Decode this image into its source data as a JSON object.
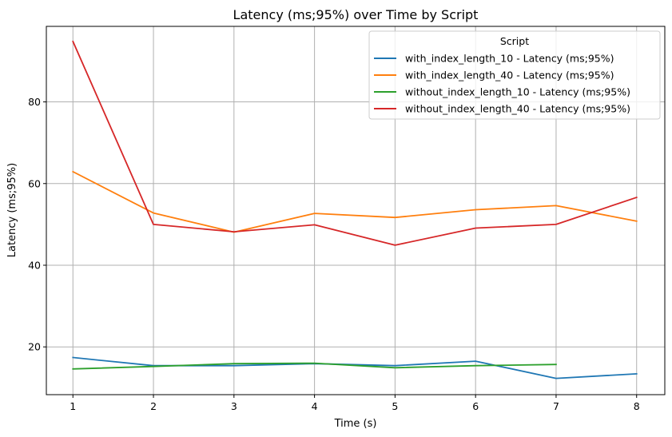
{
  "chart_data": {
    "type": "line",
    "title": "Latency (ms;95%) over Time by Script",
    "xlabel": "Time (s)",
    "ylabel": "Latency (ms;95%)",
    "xlim": [
      0.67,
      8.35
    ],
    "ylim": [
      8.3,
      98.5
    ],
    "xticks": [
      1,
      2,
      3,
      4,
      5,
      6,
      7,
      8
    ],
    "yticks": [
      20,
      40,
      60,
      80
    ],
    "grid": true,
    "legend": {
      "title": "Script",
      "position": "top-right"
    },
    "series": [
      {
        "name": "with_index_length_10 - Latency (ms;95%)",
        "color": "#1f77b4",
        "x": [
          1,
          2,
          3,
          4,
          5,
          6,
          7,
          8
        ],
        "values": [
          17.4,
          15.4,
          15.4,
          15.9,
          15.4,
          16.5,
          12.3,
          13.4
        ]
      },
      {
        "name": "with_index_length_40 - Latency (ms;95%)",
        "color": "#ff7f0e",
        "x": [
          1,
          2,
          3,
          4,
          5,
          6,
          7,
          8
        ],
        "values": [
          62.9,
          52.8,
          48.1,
          52.7,
          51.7,
          53.6,
          54.6,
          50.8
        ]
      },
      {
        "name": "without_index_length_10 - Latency (ms;95%)",
        "color": "#2ca02c",
        "x": [
          1,
          2,
          3,
          4,
          5,
          6,
          7
        ],
        "values": [
          14.6,
          15.2,
          15.9,
          16.0,
          14.9,
          15.4,
          15.7
        ]
      },
      {
        "name": "without_index_length_40 - Latency (ms;95%)",
        "color": "#d62728",
        "x": [
          1,
          2,
          3,
          4,
          5,
          6,
          7,
          8
        ],
        "values": [
          94.8,
          50.0,
          48.2,
          49.9,
          44.9,
          49.1,
          50.0,
          56.6
        ]
      }
    ]
  }
}
